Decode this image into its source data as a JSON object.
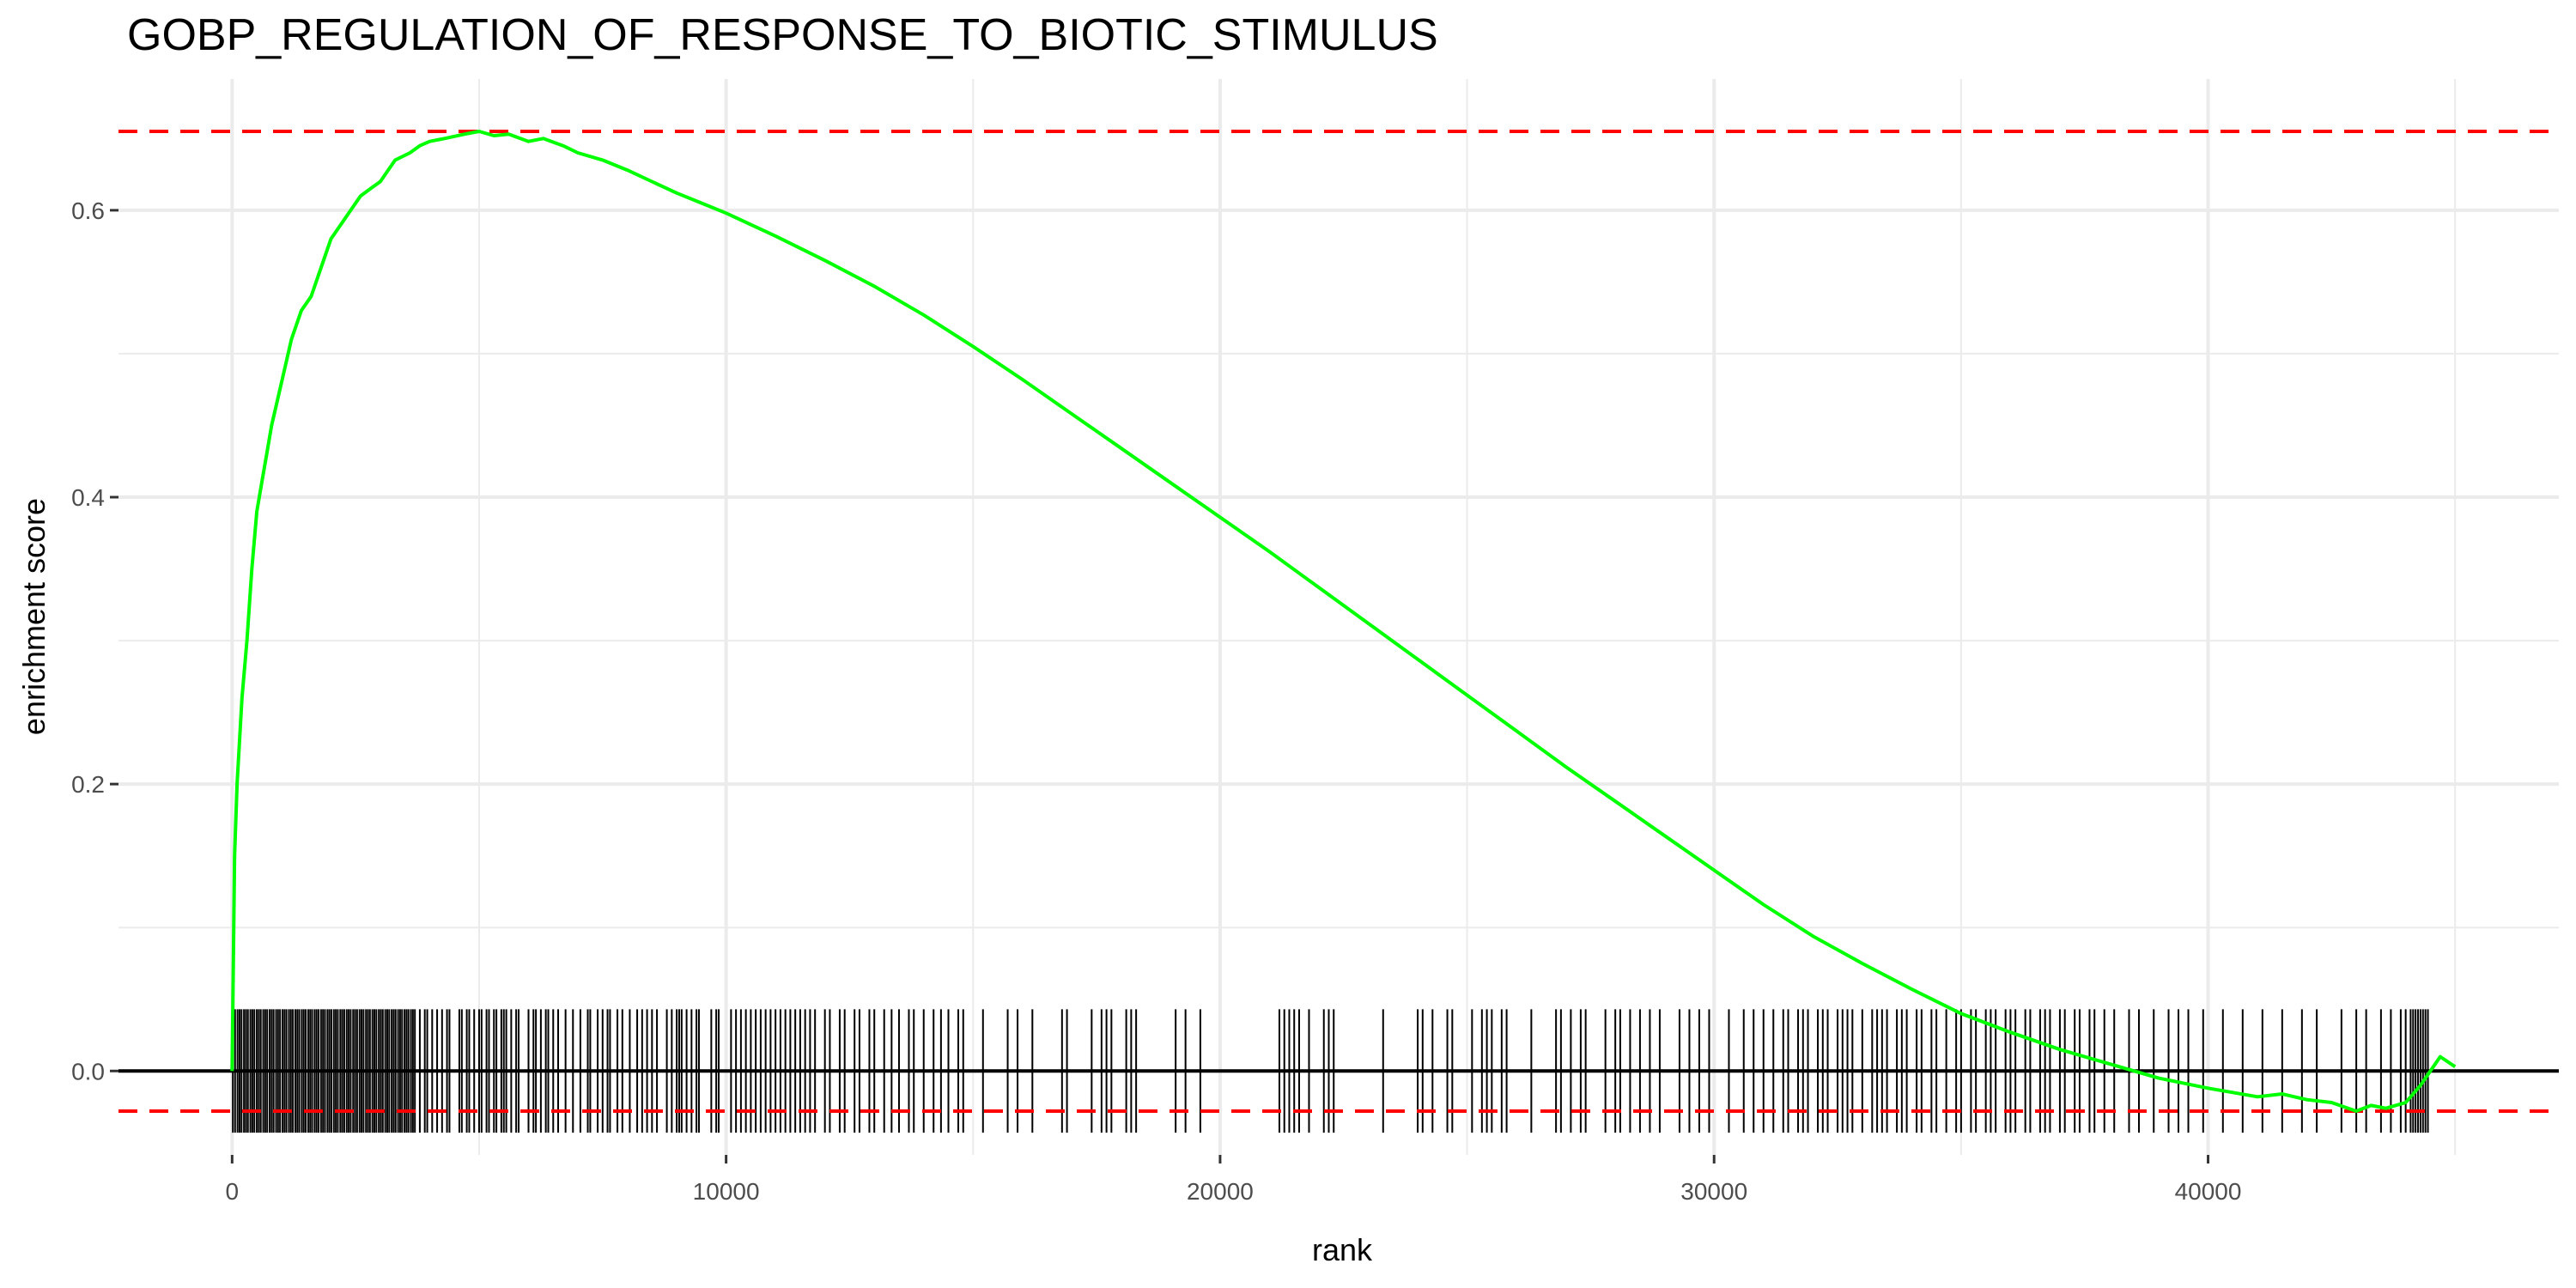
{
  "chart_data": {
    "type": "line",
    "title": "GOBP_REGULATION_OF_RESPONSE_TO_BIOTIC_STIMULUS",
    "xlabel": "rank",
    "ylabel": "enrichment score",
    "xlim": [
      -2300,
      47100
    ],
    "ylim": [
      -0.0585,
      0.6915
    ],
    "x_ticks": [
      0,
      10000,
      20000,
      30000,
      40000
    ],
    "x_tick_labels": [
      "0",
      "10000",
      "20000",
      "30000",
      "40000"
    ],
    "y_ticks": [
      0.0,
      0.2,
      0.4,
      0.6
    ],
    "y_tick_labels": [
      "0.0",
      "0.2",
      "0.4",
      "0.6"
    ],
    "grid": true,
    "colors": {
      "curve": "#00ff00",
      "reference_lines": "#ff0000",
      "hits": "#000000",
      "zero_line": "#000000",
      "grid": "#ebebeb"
    },
    "series": [
      {
        "x": [
          0,
          50,
          100,
          200,
          300,
          400,
          500,
          600,
          700,
          800,
          1000,
          1200,
          1400,
          1600,
          1800,
          2000,
          2200,
          2400,
          2600,
          2800,
          3000,
          3300,
          3600,
          3800,
          4000,
          4300,
          4700,
          5000,
          5300,
          5600,
          6000,
          6300,
          6700,
          7000,
          7500,
          8000,
          8500,
          9000,
          9500,
          10000,
          11000,
          12000,
          13000,
          14000,
          15000,
          16000,
          17000,
          18000,
          19000,
          20000,
          21000,
          22000,
          23000,
          24000,
          25000,
          26000,
          27000,
          28000,
          29000,
          30000,
          31000,
          32000,
          33000,
          34000,
          35000,
          36000,
          37000,
          38000,
          39000,
          40000,
          40500,
          41000,
          41500,
          42000,
          42500,
          43000,
          43300,
          43600,
          44000,
          44300,
          44700,
          45000
        ],
        "y": [
          0.0,
          0.15,
          0.2,
          0.26,
          0.3,
          0.35,
          0.39,
          0.41,
          0.43,
          0.45,
          0.48,
          0.51,
          0.53,
          0.54,
          0.56,
          0.58,
          0.59,
          0.6,
          0.61,
          0.615,
          0.62,
          0.635,
          0.64,
          0.645,
          0.648,
          0.65,
          0.653,
          0.655,
          0.652,
          0.653,
          0.648,
          0.65,
          0.645,
          0.64,
          0.635,
          0.628,
          0.62,
          0.612,
          0.605,
          0.598,
          0.582,
          0.565,
          0.547,
          0.527,
          0.505,
          0.482,
          0.458,
          0.434,
          0.41,
          0.386,
          0.362,
          0.337,
          0.312,
          0.287,
          0.262,
          0.237,
          0.212,
          0.188,
          0.164,
          0.14,
          0.116,
          0.094,
          0.075,
          0.057,
          0.04,
          0.027,
          0.015,
          0.005,
          -0.005,
          -0.012,
          -0.015,
          -0.018,
          -0.016,
          -0.02,
          -0.022,
          -0.028,
          -0.024,
          -0.026,
          -0.022,
          -0.01,
          0.01,
          0.003
        ]
      }
    ],
    "reference_lines": {
      "es_max": 0.655,
      "es_min": -0.028
    },
    "hit_band": {
      "y_top": 0.043,
      "y_bottom": -0.043
    },
    "hits": [
      15,
      60,
      110,
      150,
      190,
      240,
      280,
      320,
      370,
      410,
      450,
      500,
      540,
      580,
      630,
      670,
      710,
      760,
      800,
      840,
      890,
      930,
      970,
      1020,
      1060,
      1100,
      1150,
      1190,
      1230,
      1280,
      1320,
      1360,
      1410,
      1450,
      1490,
      1540,
      1580,
      1620,
      1670,
      1710,
      1750,
      1800,
      1840,
      1880,
      1930,
      1970,
      2010,
      2060,
      2100,
      2140,
      2190,
      2230,
      2270,
      2320,
      2360,
      2400,
      2450,
      2490,
      2530,
      2580,
      2620,
      2660,
      2710,
      2750,
      2790,
      2840,
      2880,
      2920,
      2970,
      3010,
      3050,
      3100,
      3140,
      3180,
      3230,
      3270,
      3310,
      3360,
      3400,
      3440,
      3490,
      3530,
      3570,
      3620,
      3660,
      3700,
      3800,
      3900,
      3950,
      4050,
      4150,
      4250,
      4350,
      4400,
      4600,
      4650,
      4750,
      4800,
      4900,
      5000,
      5050,
      5150,
      5200,
      5300,
      5350,
      5450,
      5500,
      5550,
      5650,
      5750,
      5800,
      6000,
      6100,
      6150,
      6250,
      6350,
      6400,
      6500,
      6600,
      6750,
      6900,
      7050,
      7200,
      7250,
      7400,
      7500,
      7600,
      7650,
      7800,
      7900,
      8050,
      8200,
      8300,
      8400,
      8500,
      8600,
      8800,
      8900,
      9000,
      9050,
      9100,
      9200,
      9300,
      9400,
      9450,
      9700,
      9800,
      9850,
      10100,
      10200,
      10300,
      10400,
      10500,
      10600,
      10700,
      10800,
      10900,
      11000,
      11100,
      11200,
      11300,
      11400,
      11500,
      11600,
      11700,
      11800,
      12000,
      12100,
      12300,
      12400,
      12600,
      12700,
      12900,
      13000,
      13200,
      13350,
      13500,
      13700,
      13800,
      14000,
      14200,
      14350,
      14500,
      14700,
      14800,
      15200,
      15700,
      15900,
      16200,
      16800,
      16900,
      17400,
      17600,
      17700,
      17800,
      18100,
      18200,
      18300,
      19100,
      19300,
      19600,
      21200,
      21300,
      21400,
      21500,
      21600,
      21800,
      22100,
      22200,
      22300,
      23300,
      24000,
      24100,
      24300,
      24600,
      24700,
      25100,
      25300,
      25400,
      25500,
      25700,
      25800,
      26300,
      26800,
      26900,
      27100,
      27300,
      27400,
      27800,
      28000,
      28100,
      28300,
      28500,
      28700,
      28900,
      29300,
      29500,
      29700,
      29900,
      30300,
      30600,
      30800,
      31000,
      31200,
      31400,
      31500,
      31700,
      31800,
      31900,
      32100,
      32200,
      32300,
      32500,
      32600,
      32700,
      32800,
      33000,
      33200,
      33300,
      33400,
      33500,
      33700,
      33800,
      33900,
      34100,
      34200,
      34400,
      34500,
      34700,
      34900,
      35000,
      35200,
      35300,
      35500,
      35600,
      35700,
      35900,
      36000,
      36100,
      36300,
      36400,
      36600,
      36700,
      36800,
      37000,
      37100,
      37300,
      37400,
      37600,
      37700,
      37900,
      38100,
      38400,
      38600,
      38900,
      39200,
      39400,
      39600,
      39900,
      40300,
      40700,
      41100,
      41500,
      41900,
      42200,
      42700,
      43000,
      43200,
      43500,
      43700,
      43900,
      44000,
      44100,
      44150,
      44200,
      44250,
      44300,
      44350,
      44400,
      44450
    ]
  }
}
